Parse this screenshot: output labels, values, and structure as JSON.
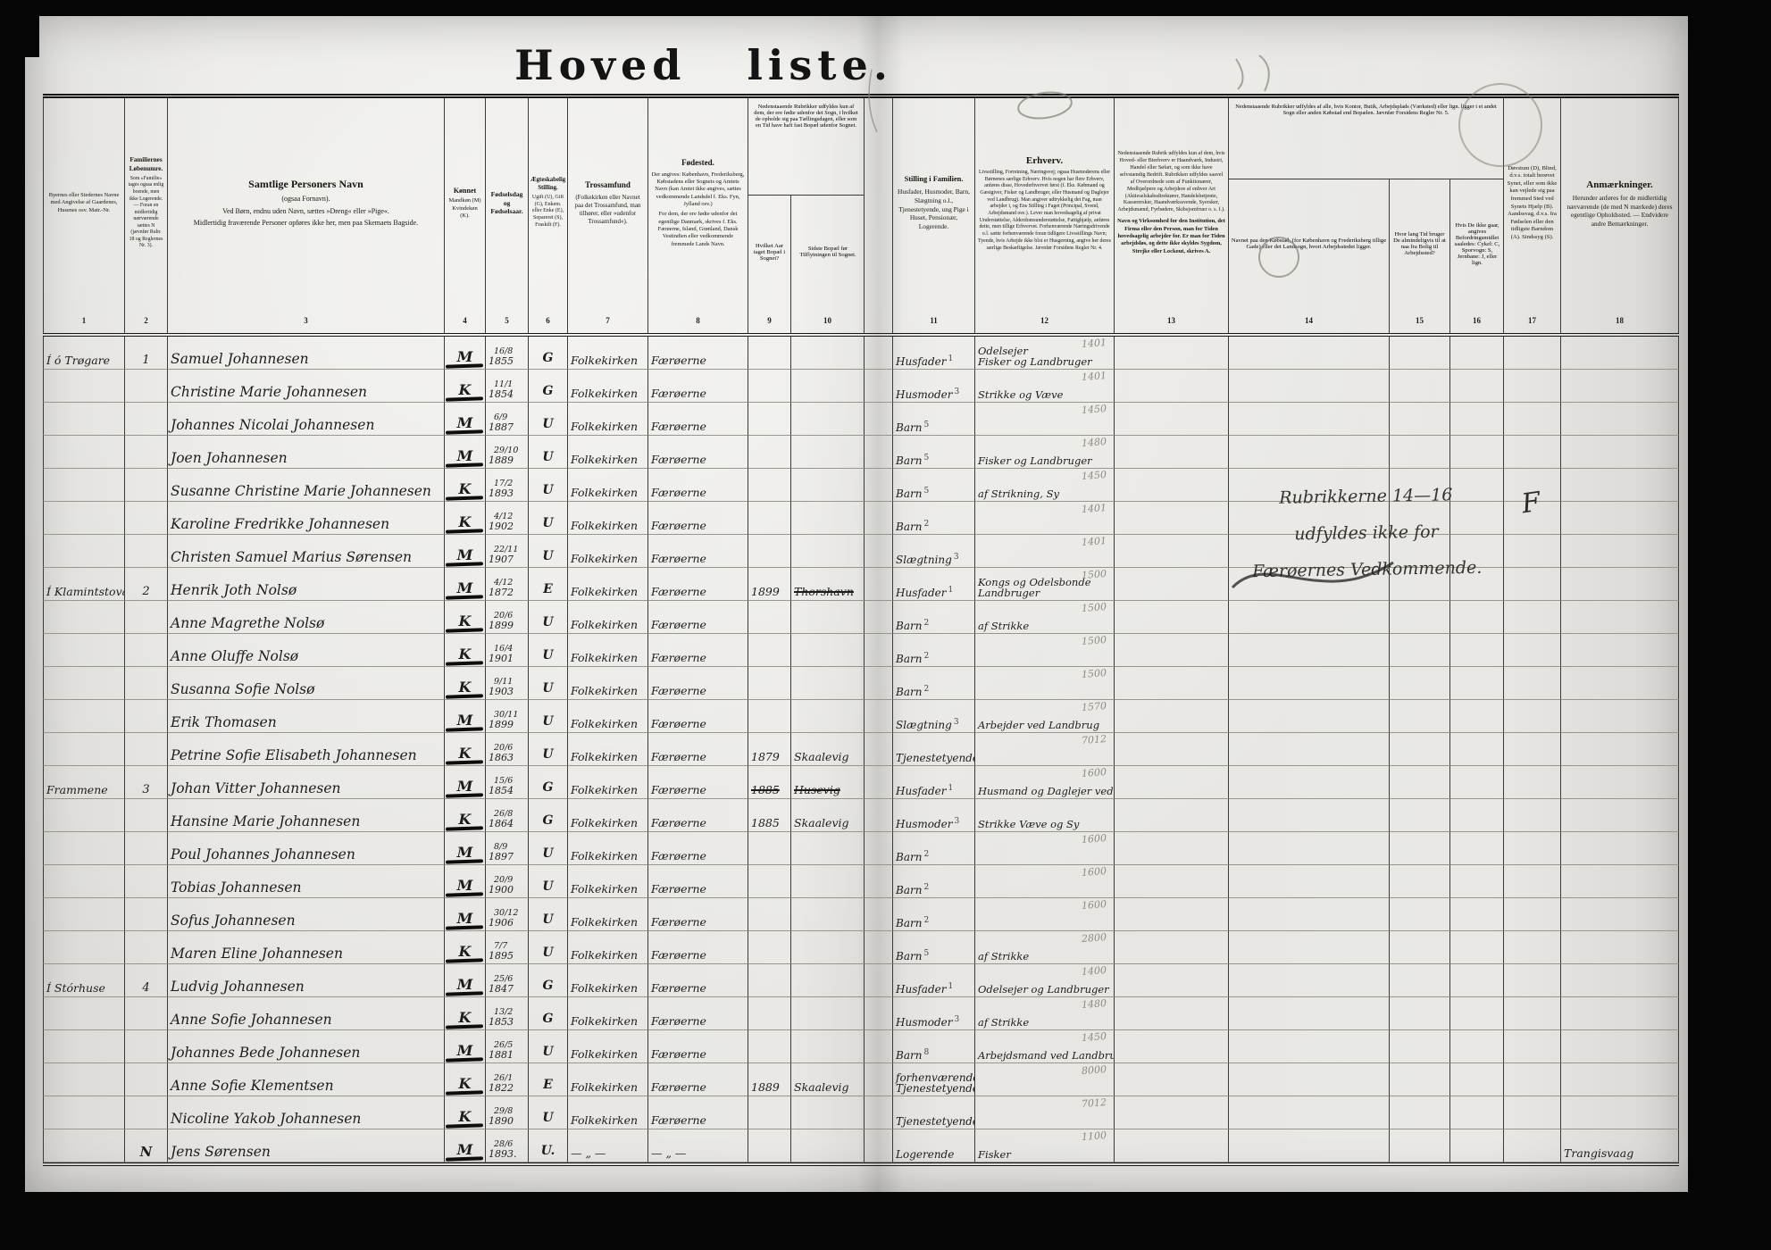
{
  "title": "Hoved liste.",
  "column_numbers": [
    "1",
    "2",
    "3",
    "4",
    "5",
    "6",
    "7",
    "8",
    "9",
    "10",
    "11",
    "12",
    "13",
    "14",
    "15",
    "16",
    "17",
    "18"
  ],
  "headers": {
    "c1": {
      "main": "Byernes eller Stedernes Navne med Angivelse af Gaardenes, Husenes osv. Matr.-Nr."
    },
    "c2": {
      "main": "Familiernes Løbenumre.",
      "note": "Som »Familie« tages ogsaa enlig boende, men ikke Logerende. — Foran en midlertidig nærværende sættes N (jævnfør Rubr. 18 og Reglernes Nr. 3)."
    },
    "c3": {
      "title": "Samtlige Personers Navn",
      "sub": "(ogsaa Fornavn).",
      "note1": "Ved Børn, endnu uden Navn, sættes »Dreng« eller »Pige«.",
      "note2": "Midlertidig fraværende Personer opføres ikke her, men paa Skemaets Bagside."
    },
    "c4": {
      "main": "Kønnet",
      "note": "Mandkøn (M) Kvindekøn (K)."
    },
    "c5": {
      "main": "Fødselsdag og Fødselsaar."
    },
    "c6": {
      "main": "Ægteskabelig Stilling.",
      "note": "Ugift (U), Gift (G), Enkem. eller Enke (E), Separeret (S), Fraskilt (F)."
    },
    "c7": {
      "main": "Trossamfund",
      "note": "(Folkekirken eller Navnet paa det Trossamfund, man tilhører, eller »udenfor Trossamfund«)."
    },
    "c8": {
      "title": "Fødested.",
      "note1": "Der angives: København, Frederiksberg, Købstadens eller Sognets og Amtets Navn (kan Amtet ikke angives, sættes vedkommende Landsdel f. Eks. Fyn, Jylland osv.)",
      "note2": "For dem, der ere fødte udenfor det egentlige Danmark, skrives f. Eks. Færøerne, Island, Grønland, Dansk Vestindien eller vedkommende fremmede Lands Navn."
    },
    "c9_10_note": "Nedenstaaende Rubrikker udfyldes kun af dem, der ere fødte udenfor det Sogn, i hvilket de opholde sig paa Tællingsdagen, eller som en Tid have haft fast Bopæl udenfor Sognet.",
    "c9": {
      "main": "Hvilket Aar taget Bopæl i Sognet?"
    },
    "c10": {
      "main": "Sidste Bopæl før Tilflytningen til Sognet."
    },
    "c11": {
      "main": "Stilling i Familien.",
      "note": "Husfader, Husmoder, Barn, Slægtning o.l., Tjenestetyende, ung Pige i Huset, Pensionær, Logerende."
    },
    "c12": {
      "title": "Erhverv.",
      "note": "Livsstilling, Forretning, Næringsvej; ogsaa Husmoderens eller Børnenes særlige Erhverv. Hvis nogen har flere Erhverv, anføres disse, Hovederhvervet først (f. Eks. Købmand og Gæstgiver, Fisker og Landbruger, eller Husmand og Daglejer ved Landbrug). Man angiver udtrykkelig det Fag, man arbejder i, og Ens Stilling i Faget (Principal, Svend, Arbejdsmand osv.). Lever man hovedsagelig af privat Understøttelse, Alderdomsunderstøttelse, Fattighjælp, anføres dette, men tillige Erhvervet. Forhenværende Næringsdrivende o.l. sætte forhenværende foran tidligere Livsstillings Navn; Tyende, hvis Arbejde ikke blot er Husgerning, angive her deres særlige Beskæftigelse. Jævnfør Forsidens Regler Nr. 4."
    },
    "c13": {
      "note1": "Nedenstaaende Rubrik udfyldes kun af dem, hvis Hoved- eller Bierhverv er Haandværk, Industri, Handel eller Søfart, og som ikke have selvstændig Bedrift. Rubrikken udfyldes saavel af Overordnede som af Funktionærer, Medhjælpere og Arbejdere af enhver Art (Aktieselskabsdirektører, Handelsbetjente, Kasserersker, Haandværkssvende, Syersker, Arbejdsmænd, Fyrbødere, Skibsjomfruer o. s. f.).",
      "note2": "Navn og Virksomhed for den Institution, det Firma eller den Person, man for Tiden hovedsagelig arbejder for. Er man for Tiden arbejdsløs, og dette ikke skyldes Sygdom, Strejke eller Lockout, skrives A."
    },
    "c14_16_note": "Nedenstaaende Rubrikker udfyldes af alle, hvis Kontor, Butik, Arbejdsplads (Værksted) eller lign. ligger i et andet Sogn eller anden Købstad end Bopælen. Jævnfør Forsidens Regler Nr. 5.",
    "c14": {
      "main": "Navnet paa den Købstad, (for København og Frederiksberg tillige Gade) eller det Landsogn, hvori Arbejdsstedet ligger."
    },
    "c15": {
      "main": "Hvor lang Tid bruger De almindeligvis til at naa fra Bolig til Arbejdssted?"
    },
    "c16": {
      "main": "Hvis De ikke gaar, angives Befordringsmidlet saaledes: Cykel: C, Sporvogn: S, Jernbane: J, eller lign."
    },
    "c17": {
      "main": "Døvstum (D), Blind, d.v.s. totalt berøvet Synet, eller som ikke kan vejlede sig paa fremmed Sted ved Synets Hjælp (B). Aandssvag, d.v.s. fra Fødselen eller den tidligste Barndom (A). Sindssyg (S)."
    },
    "c18": {
      "title": "Anmærkninger.",
      "note": "Herunder anføres for de midlertidig nærværende (de med N mærkede) deres egentlige Opholdssted. — Endvidere andre Bemærkninger."
    }
  },
  "annotation": {
    "line1": "Rubrikkerne 14—16",
    "line2": "udfyldes ikke for",
    "line3": "Færøernes Vedkommende.",
    "flourish": "F"
  },
  "rows": [
    {
      "place": "Í ó Trøgare",
      "fam": "1",
      "name": "Samuel Johannesen",
      "sex": "M",
      "dm": "16/8",
      "yr": "1855",
      "st": "G",
      "ch": "Folkekirken",
      "bp": "Færøerne",
      "yi": "",
      "lr": "",
      "sti": "Husfader",
      "sup": "1",
      "e1": "Odelsejer",
      "e2": "Fisker og Landbruger",
      "code": "1401",
      "rem": ""
    },
    {
      "place": "",
      "fam": "",
      "name": "Christine Marie Johannesen",
      "sex": "K",
      "dm": "11/1",
      "yr": "1854",
      "st": "G",
      "ch": "Folkekirken",
      "bp": "Færøerne",
      "yi": "",
      "lr": "",
      "sti": "Husmoder",
      "sup": "3",
      "e1": "Strikke og Væve",
      "e2": "",
      "code": "1401",
      "rem": ""
    },
    {
      "place": "",
      "fam": "",
      "name": "Johannes Nicolai Johannesen",
      "sex": "M",
      "dm": "6/9",
      "yr": "1887",
      "st": "U",
      "ch": "Folkekirken",
      "bp": "Færøerne",
      "yi": "",
      "lr": "",
      "sti": "Barn",
      "sup": "5",
      "e1": "",
      "e2": "",
      "code": "1450",
      "rem": ""
    },
    {
      "place": "",
      "fam": "",
      "name": "Joen Johannesen",
      "sex": "M",
      "dm": "29/10",
      "yr": "1889",
      "st": "U",
      "ch": "Folkekirken",
      "bp": "Færøerne",
      "yi": "",
      "lr": "",
      "sti": "Barn",
      "sup": "5",
      "e1": "Fisker og Landbruger",
      "e2": "",
      "code": "1480",
      "rem": ""
    },
    {
      "place": "",
      "fam": "",
      "name": "Susanne Christine Marie Johannesen",
      "sex": "K",
      "dm": "17/2",
      "yr": "1893",
      "st": "U",
      "ch": "Folkekirken",
      "bp": "Færøerne",
      "yi": "",
      "lr": "",
      "sti": "Barn",
      "sup": "5",
      "e1": "af Strikning, Sy",
      "e2": "",
      "code": "1450",
      "rem": ""
    },
    {
      "place": "",
      "fam": "",
      "name": "Karoline Fredrikke Johannesen",
      "sex": "K",
      "dm": "4/12",
      "yr": "1902",
      "st": "U",
      "ch": "Folkekirken",
      "bp": "Færøerne",
      "yi": "",
      "lr": "",
      "sti": "Barn",
      "sup": "2",
      "e1": "",
      "e2": "",
      "code": "1401",
      "rem": ""
    },
    {
      "place": "",
      "fam": "",
      "name": "Christen Samuel Marius Sørensen",
      "sex": "M",
      "dm": "22/11",
      "yr": "1907",
      "st": "U",
      "ch": "Folkekirken",
      "bp": "Færøerne",
      "yi": "",
      "lr": "",
      "sti": "Slægtning",
      "sup": "3",
      "e1": "",
      "e2": "",
      "code": "1401",
      "rem": ""
    },
    {
      "place": "Í Klamintstova",
      "fam": "2",
      "name": "Henrik Joth Nolsø",
      "sex": "M",
      "dm": "4/12",
      "yr": "1872",
      "st": "E",
      "ch": "Folkekirken",
      "bp": "Færøerne",
      "yi": "1899",
      "lr": "Thorshavn",
      "lrs": true,
      "sti": "Husfader",
      "sup": "1",
      "e1": "Kongs og Odelsbonde",
      "e2": "Landbruger",
      "code": "1500",
      "rem": ""
    },
    {
      "place": "",
      "fam": "",
      "name": "Anne Magrethe Nolsø",
      "sex": "K",
      "dm": "20/6",
      "yr": "1899",
      "st": "U",
      "ch": "Folkekirken",
      "bp": "Færøerne",
      "yi": "",
      "lr": "",
      "sti": "Barn",
      "sup": "2",
      "e1": "af Strikke",
      "e2": "",
      "code": "1500",
      "rem": ""
    },
    {
      "place": "",
      "fam": "",
      "name": "Anne Oluffe Nolsø",
      "sex": "K",
      "dm": "16/4",
      "yr": "1901",
      "st": "U",
      "ch": "Folkekirken",
      "bp": "Færøerne",
      "yi": "",
      "lr": "",
      "sti": "Barn",
      "sup": "2",
      "e1": "",
      "e2": "",
      "code": "1500",
      "rem": ""
    },
    {
      "place": "",
      "fam": "",
      "name": "Susanna Sofie Nolsø",
      "sex": "K",
      "dm": "9/11",
      "yr": "1903",
      "st": "U",
      "ch": "Folkekirken",
      "bp": "Færøerne",
      "yi": "",
      "lr": "",
      "sti": "Barn",
      "sup": "2",
      "e1": "",
      "e2": "",
      "code": "1500",
      "rem": ""
    },
    {
      "place": "",
      "fam": "",
      "name": "Erik Thomasen",
      "sex": "M",
      "dm": "30/11",
      "yr": "1899",
      "st": "U",
      "ch": "Folkekirken",
      "bp": "Færøerne",
      "yi": "",
      "lr": "",
      "sti": "Slægtning",
      "sup": "3",
      "e1": "Arbejder ved Landbrug",
      "e2": "",
      "code": "1570",
      "rem": ""
    },
    {
      "place": "",
      "fam": "",
      "name": "Petrine Sofie Elisabeth Johannesen",
      "sex": "K",
      "dm": "20/6",
      "yr": "1863",
      "st": "U",
      "ch": "Folkekirken",
      "bp": "Færøerne",
      "yi": "1879",
      "lr": "Skaalevig",
      "sti": "Tjenestetyende",
      "sup": "7",
      "e1": "",
      "e2": "",
      "code": "7012",
      "rem": ""
    },
    {
      "place": "Frammene",
      "fam": "3",
      "name": "Johan Vitter Johannesen",
      "sex": "M",
      "dm": "15/6",
      "yr": "1854",
      "st": "G",
      "ch": "Folkekirken",
      "bp": "Færøerne",
      "yi": "1885",
      "yis": true,
      "lr": "Husevig",
      "lrs": true,
      "sti": "Husfader",
      "sup": "1",
      "e1": "Husmand og Daglejer ved Landbrug",
      "e2": "",
      "code": "1600",
      "rem": ""
    },
    {
      "place": "",
      "fam": "",
      "name": "Hansine Marie Johannesen",
      "sex": "K",
      "dm": "26/8",
      "yr": "1864",
      "st": "G",
      "ch": "Folkekirken",
      "bp": "Færøerne",
      "yi": "1885",
      "lr": "Skaalevig",
      "sti": "Husmoder",
      "sup": "3",
      "e1": "Strikke Væve og Sy",
      "e2": "",
      "code": "",
      "rem": ""
    },
    {
      "place": "",
      "fam": "",
      "name": "Poul Johannes Johannesen",
      "sex": "M",
      "dm": "8/9",
      "yr": "1897",
      "st": "U",
      "ch": "Folkekirken",
      "bp": "Færøerne",
      "yi": "",
      "lr": "",
      "sti": "Barn",
      "sup": "2",
      "e1": "",
      "e2": "",
      "code": "1600",
      "rem": ""
    },
    {
      "place": "",
      "fam": "",
      "name": "Tobias Johannesen",
      "sex": "M",
      "dm": "20/9",
      "yr": "1900",
      "st": "U",
      "ch": "Folkekirken",
      "bp": "Færøerne",
      "yi": "",
      "lr": "",
      "sti": "Barn",
      "sup": "2",
      "e1": "",
      "e2": "",
      "code": "1600",
      "rem": ""
    },
    {
      "place": "",
      "fam": "",
      "name": "Sofus Johannesen",
      "sex": "M",
      "dm": "30/12",
      "yr": "1906",
      "st": "U",
      "ch": "Folkekirken",
      "bp": "Færøerne",
      "yi": "",
      "lr": "",
      "sti": "Barn",
      "sup": "2",
      "e1": "",
      "e2": "",
      "code": "1600",
      "rem": ""
    },
    {
      "place": "",
      "fam": "",
      "name": "Maren Eline Johannesen",
      "sex": "K",
      "dm": "7/7",
      "yr": "1895",
      "st": "U",
      "ch": "Folkekirken",
      "bp": "Færøerne",
      "yi": "",
      "lr": "",
      "sti": "Barn",
      "sup": "5",
      "e1": "af Strikke",
      "e2": "",
      "code": "2800",
      "rem": ""
    },
    {
      "place": "Í Stórhuse",
      "fam": "4",
      "name": "Ludvig Johannesen",
      "sex": "M",
      "dm": "25/6",
      "yr": "1847",
      "st": "G",
      "ch": "Folkekirken",
      "bp": "Færøerne",
      "yi": "",
      "lr": "",
      "sti": "Husfader",
      "sup": "1",
      "e1": "Odelsejer og Landbruger",
      "e2": "",
      "code": "1400",
      "rem": ""
    },
    {
      "place": "",
      "fam": "",
      "name": "Anne Sofie Johannesen",
      "sex": "K",
      "dm": "13/2",
      "yr": "1853",
      "st": "G",
      "ch": "Folkekirken",
      "bp": "Færøerne",
      "yi": "",
      "lr": "",
      "sti": "Husmoder",
      "sup": "3",
      "e1": "af Strikke",
      "e2": "",
      "code": "1480",
      "rem": ""
    },
    {
      "place": "",
      "fam": "",
      "name": "Johannes Bede Johannesen",
      "sex": "M",
      "dm": "26/5",
      "yr": "1881",
      "st": "U",
      "ch": "Folkekirken",
      "bp": "Færøerne",
      "yi": "",
      "lr": "",
      "sti": "Barn",
      "sup": "8",
      "e1": "Arbejdsmand ved Landbrug",
      "e2": "",
      "code": "1450",
      "rem": ""
    },
    {
      "place": "",
      "fam": "",
      "name": "Anne Sofie Klementsen",
      "sex": "K",
      "dm": "26/1",
      "yr": "1822",
      "st": "E",
      "ch": "Folkekirken",
      "bp": "Færøerne",
      "yi": "1889",
      "lr": "Skaalevig",
      "sti": "forhenværende",
      "sti2": "Tjenestetyende",
      "sup": "",
      "e1": "",
      "e2": "",
      "code": "8000",
      "rem": ""
    },
    {
      "place": "",
      "fam": "",
      "name": "Nicoline Yakob Johannesen",
      "sex": "K",
      "dm": "29/8",
      "yr": "1890",
      "st": "U",
      "ch": "Folkekirken",
      "bp": "Færøerne",
      "yi": "",
      "lr": "",
      "sti": "Tjenestetyende",
      "sup": "7",
      "e1": "",
      "e2": "",
      "code": "7012",
      "rem": ""
    },
    {
      "place": "",
      "fam": "",
      "nmark": "N",
      "name": "Jens Sørensen",
      "sex": "M",
      "dm": "28/6",
      "yr": "1893.",
      "st": "U.",
      "ch": "— „ —",
      "bp": "— „ —",
      "yi": "",
      "lr": "",
      "sti": "Logerende",
      "sup": "",
      "e1": "Fisker",
      "e2": "",
      "code": "1100",
      "rem": "Trangisvaag"
    }
  ]
}
